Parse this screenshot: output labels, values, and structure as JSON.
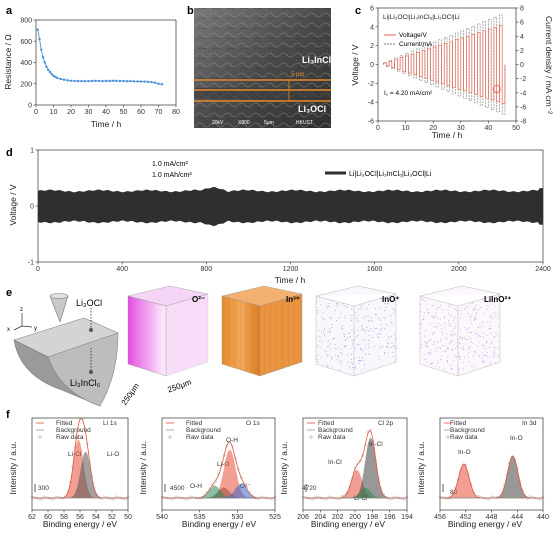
{
  "panels": {
    "a": "a",
    "b": "b",
    "c": "c",
    "d": "d",
    "e": "e",
    "f": "f"
  },
  "sem": {
    "li3incl6": "Li₃InCl₆",
    "li3ocl": "Li₃OCl",
    "scale": "5 μm",
    "info": [
      "20kV",
      "X800",
      "5μm",
      "HKUST"
    ]
  },
  "e_panel": {
    "axes": {
      "z": "z",
      "x": "x",
      "y": "y"
    },
    "labels": {
      "li3ocl": "Li₃OCl",
      "li3incl6": "Li₃InCl₆",
      "dim1": "250μm",
      "dim2": "250μm"
    },
    "ions": [
      "O²⁻",
      "In³⁺",
      "InO⁺",
      "LiInO²⁺"
    ],
    "colors": [
      "#e040e0",
      "#e8892b",
      "#6f6fe0",
      "#b46ee8"
    ]
  },
  "chart_data": [
    {
      "id": "a",
      "type": "line",
      "xlabel": "Time / h",
      "ylabel": "Resistance / Ω",
      "xlim": [
        0,
        80
      ],
      "ylim": [
        0,
        800
      ],
      "xticks": [
        0,
        10,
        20,
        30,
        40,
        50,
        60,
        70,
        80
      ],
      "yticks": [
        0,
        200,
        400,
        600,
        800
      ],
      "color": "#4a90d9",
      "x": [
        1,
        2,
        3,
        4,
        5,
        6,
        7,
        8,
        9,
        10,
        11,
        12,
        14,
        16,
        18,
        20,
        22,
        24,
        26,
        28,
        30,
        32,
        34,
        36,
        38,
        40,
        42,
        44,
        46,
        48,
        50,
        52,
        54,
        56,
        58,
        60,
        62,
        64,
        66,
        68,
        70,
        72
      ],
      "y": [
        710,
        620,
        520,
        450,
        400,
        360,
        330,
        310,
        290,
        275,
        265,
        255,
        245,
        238,
        232,
        228,
        226,
        225,
        225,
        224,
        225,
        226,
        228,
        226,
        225,
        227,
        226,
        228,
        227,
        225,
        226,
        224,
        225,
        223,
        222,
        220,
        220,
        218,
        215,
        210,
        200,
        195
      ]
    },
    {
      "id": "c",
      "type": "line",
      "xlabel": "Time / h",
      "ylabel": "Voltage / V",
      "ylabel2": "Current density / mA cm⁻²",
      "xlim": [
        0,
        50
      ],
      "ylim": [
        -6,
        6
      ],
      "ylim2": [
        -8,
        8
      ],
      "xticks": [
        0,
        10,
        20,
        30,
        40,
        50
      ],
      "yticks": [
        -6,
        -4,
        -2,
        0,
        2,
        4,
        6
      ],
      "yticks2": [
        -8,
        -6,
        -4,
        -2,
        0,
        2,
        4,
        6,
        8
      ],
      "title": "Li|Li₃OCl|Li₃InCl₆|Li₃OCl|Li",
      "legend": [
        "Voltage/V",
        "Current/mA"
      ],
      "annotation": "I꜀ = 4.20 mA/cm²",
      "critical_x": 43
    },
    {
      "id": "d",
      "type": "line",
      "xlabel": "Time / h",
      "ylabel": "Voltage / V",
      "xlim": [
        0,
        2400
      ],
      "ylim": [
        -1,
        1
      ],
      "xticks": [
        0,
        400,
        800,
        1200,
        1600,
        2000,
        2400
      ],
      "yticks": [
        -1,
        0,
        1
      ],
      "notes": [
        "1.0 mA/cm²",
        "1.0 mAh/cm²"
      ],
      "legend": "Li|Li₃OCl|Li₃InCl₆|Li₃OCl|Li"
    },
    {
      "id": "f1",
      "type": "line",
      "title": "Li 1s",
      "xlabel": "Binding energy / eV",
      "ylabel": "Intensity / a.u.",
      "xlim": [
        62,
        50
      ],
      "xticks": [
        62,
        60,
        58,
        56,
        54,
        52,
        50
      ],
      "legend": [
        "Fitted",
        "Background",
        "Raw data"
      ],
      "peaks": [
        {
          "label": "Li-Cl",
          "x": 56.2,
          "color": "#e8503a"
        },
        {
          "label": "Li-O",
          "x": 55.3,
          "color": "#555"
        }
      ],
      "scalebar": "300"
    },
    {
      "id": "f2",
      "type": "line",
      "title": "O 1s",
      "xlabel": "Binding energy / eV",
      "ylabel": "Intensity / a.u.",
      "xlim": [
        540,
        525
      ],
      "xticks": [
        540,
        535,
        530,
        525
      ],
      "legend": [
        "Fitted",
        "Background",
        "Raw data"
      ],
      "peaks": [
        {
          "label": "O-H",
          "x": 531.8,
          "color": "#444"
        },
        {
          "label": "Li-O",
          "x": 531.0,
          "color": "#e8503a"
        },
        {
          "label": "O-H",
          "x": 533.0,
          "color": "#2e8b57"
        },
        {
          "label": "O²⁻",
          "x": 529.5,
          "color": "#3a66d0"
        }
      ],
      "scalebar": "4500"
    },
    {
      "id": "f3",
      "type": "line",
      "title": "Cl 2p",
      "xlabel": "Binding energy / eV",
      "ylabel": "Intensity / a.u.",
      "xlim": [
        206,
        194
      ],
      "xticks": [
        206,
        204,
        202,
        200,
        198,
        196,
        194
      ],
      "legend": [
        "Fitted",
        "Background",
        "Raw data"
      ],
      "peaks": [
        {
          "label": "In-Cl",
          "x": 199.8,
          "color": "#e8503a"
        },
        {
          "label": "In-Cl",
          "x": 198.2,
          "color": "#444"
        },
        {
          "label": "Li-Cl",
          "x": 198.8,
          "color": "#2e8b57"
        }
      ],
      "scalebar": "4720"
    },
    {
      "id": "f4",
      "type": "line",
      "title": "In 3d",
      "xlabel": "Binding energy / eV",
      "ylabel": "Intensity / a.u.",
      "xlim": [
        456,
        440
      ],
      "xticks": [
        456,
        452,
        448,
        444,
        440
      ],
      "legend": [
        "Fitted",
        "Background",
        "Raw data"
      ],
      "peaks": [
        {
          "label": "In-O",
          "x": 452.3,
          "color": "#e8503a"
        },
        {
          "label": "In-O",
          "x": 444.7,
          "color": "#444"
        }
      ],
      "scalebar": "80"
    }
  ]
}
